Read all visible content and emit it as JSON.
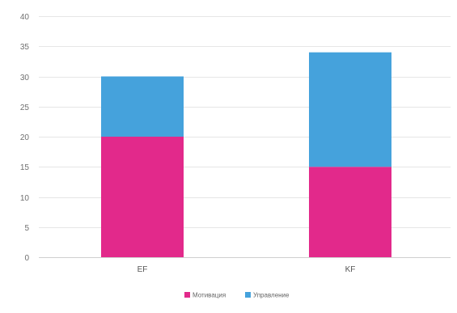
{
  "chart_data": {
    "type": "bar",
    "stacked": true,
    "categories": [
      "EF",
      "KF"
    ],
    "series": [
      {
        "name": "Мотивация",
        "values": [
          20,
          15
        ],
        "color": "#e2298b"
      },
      {
        "name": "Управление",
        "values": [
          10,
          19
        ],
        "color": "#45a2dc"
      }
    ],
    "ylim": [
      0,
      40
    ],
    "yticks": [
      0,
      5,
      10,
      15,
      20,
      25,
      30,
      35,
      40
    ],
    "grid": true,
    "legend": "bottom",
    "xlabel": "",
    "ylabel": "",
    "title": ""
  }
}
